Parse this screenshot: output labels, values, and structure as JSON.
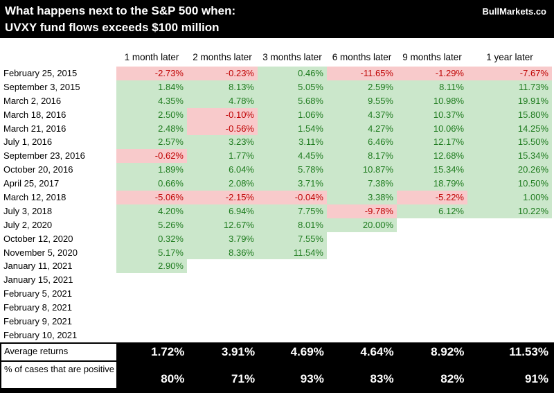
{
  "header": {
    "title_line1": "What happens next to the S&P 500 when:",
    "title_line2": "UVXY fund flows exceeds $100 million",
    "brand": "BullMarkets.co"
  },
  "colors": {
    "positive_bg": "#cbe7cb",
    "positive_text": "#1e7b1e",
    "negative_bg": "#f8cacb",
    "negative_text": "#be0000",
    "bar_bg": "#000000",
    "bar_text": "#ffffff"
  },
  "chart_data": {
    "type": "table",
    "title": "What happens next to the S&P 500 when: UVXY fund flows exceeds $100 million",
    "columns": [
      "1 month later",
      "2 months later",
      "3 months later",
      "6 months later",
      "9 months later",
      "1 year later"
    ],
    "rows": [
      {
        "date": "February 25, 2015",
        "values": [
          "-2.73%",
          "-0.23%",
          "0.46%",
          "-11.65%",
          "-1.29%",
          "-7.67%"
        ]
      },
      {
        "date": "September 3, 2015",
        "values": [
          "1.84%",
          "8.13%",
          "5.05%",
          "2.59%",
          "8.11%",
          "11.73%"
        ]
      },
      {
        "date": "March 2, 2016",
        "values": [
          "4.35%",
          "4.78%",
          "5.68%",
          "9.55%",
          "10.98%",
          "19.91%"
        ]
      },
      {
        "date": "March 18, 2016",
        "values": [
          "2.50%",
          "-0.10%",
          "1.06%",
          "4.37%",
          "10.37%",
          "15.80%"
        ]
      },
      {
        "date": "March 21, 2016",
        "values": [
          "2.48%",
          "-0.56%",
          "1.54%",
          "4.27%",
          "10.06%",
          "14.25%"
        ]
      },
      {
        "date": "July 1, 2016",
        "values": [
          "2.57%",
          "3.23%",
          "3.11%",
          "6.46%",
          "12.17%",
          "15.50%"
        ]
      },
      {
        "date": "September 23, 2016",
        "values": [
          "-0.62%",
          "1.77%",
          "4.45%",
          "8.17%",
          "12.68%",
          "15.34%"
        ]
      },
      {
        "date": "October 20, 2016",
        "values": [
          "1.89%",
          "6.04%",
          "5.78%",
          "10.87%",
          "15.34%",
          "20.26%"
        ]
      },
      {
        "date": "April 25, 2017",
        "values": [
          "0.66%",
          "2.08%",
          "3.71%",
          "7.38%",
          "18.79%",
          "10.50%"
        ]
      },
      {
        "date": "March 12, 2018",
        "values": [
          "-5.06%",
          "-2.15%",
          "-0.04%",
          "3.38%",
          "-5.22%",
          "1.00%"
        ]
      },
      {
        "date": "July 3, 2018",
        "values": [
          "4.20%",
          "6.94%",
          "7.75%",
          "-9.78%",
          "6.12%",
          "10.22%"
        ]
      },
      {
        "date": "July 2, 2020",
        "values": [
          "5.26%",
          "12.67%",
          "8.01%",
          "20.00%",
          "",
          ""
        ]
      },
      {
        "date": "October 12, 2020",
        "values": [
          "0.32%",
          "3.79%",
          "7.55%",
          "",
          "",
          ""
        ]
      },
      {
        "date": "November 5, 2020",
        "values": [
          "5.17%",
          "8.36%",
          "11.54%",
          "",
          "",
          ""
        ]
      },
      {
        "date": "January 11, 2021",
        "values": [
          "2.90%",
          "",
          "",
          "",
          "",
          ""
        ]
      },
      {
        "date": "January 15, 2021",
        "values": [
          "",
          "",
          "",
          "",
          "",
          ""
        ]
      },
      {
        "date": "February 5, 2021",
        "values": [
          "",
          "",
          "",
          "",
          "",
          ""
        ]
      },
      {
        "date": "February 8, 2021",
        "values": [
          "",
          "",
          "",
          "",
          "",
          ""
        ]
      },
      {
        "date": "February 9, 2021",
        "values": [
          "",
          "",
          "",
          "",
          "",
          ""
        ]
      },
      {
        "date": "February 10, 2021",
        "values": [
          "",
          "",
          "",
          "",
          "",
          ""
        ]
      }
    ],
    "summary": {
      "average_label": "Average returns",
      "average": [
        "1.72%",
        "3.91%",
        "4.69%",
        "4.64%",
        "8.92%",
        "11.53%"
      ],
      "positive_label": "% of cases that are positive",
      "positive": [
        "80%",
        "71%",
        "93%",
        "83%",
        "82%",
        "91%"
      ]
    },
    "layout_hints": {
      "positive_cells": "green fill",
      "negative_cells": "pink fill",
      "summary_rows": "white bold on black"
    }
  }
}
